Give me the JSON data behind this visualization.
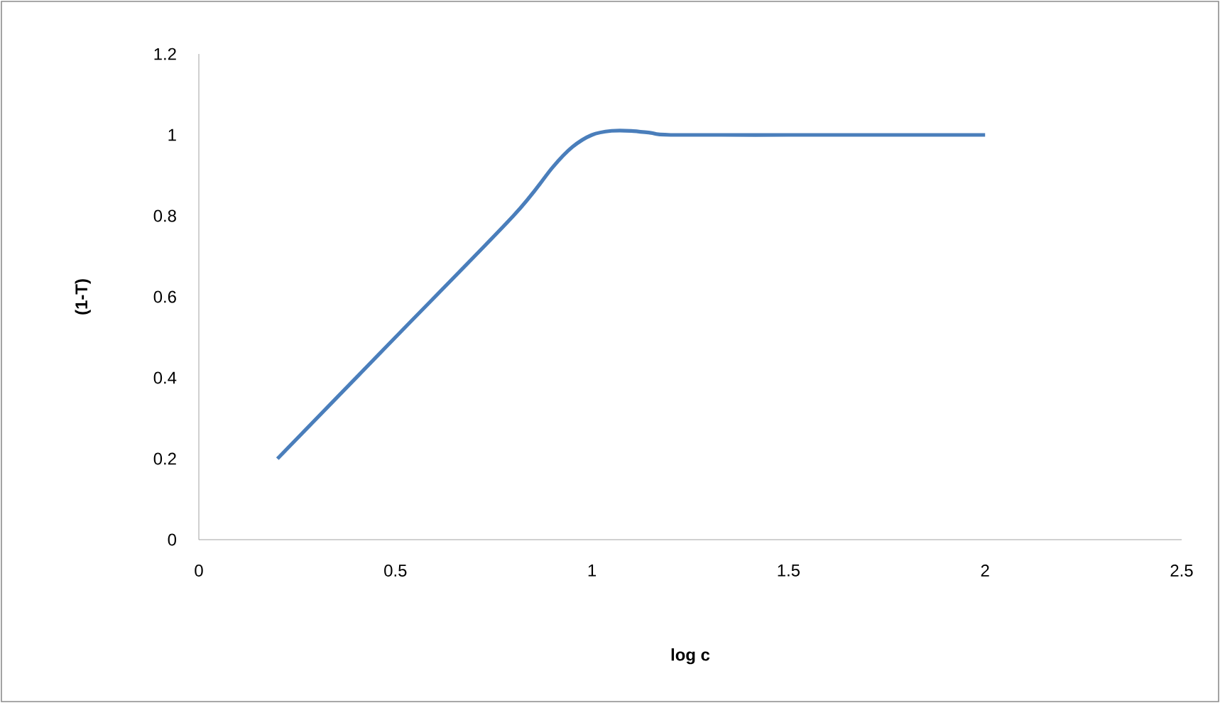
{
  "chart_data": {
    "type": "line",
    "xlabel": "log c",
    "ylabel": "(1-T)",
    "x": [
      0.2,
      0.5,
      0.8,
      0.9,
      0.95,
      1.0,
      1.05,
      1.1,
      1.15,
      1.2,
      1.5,
      2.0
    ],
    "series": [
      {
        "color": "#4a7ebb",
        "values": [
          0.2,
          0.5,
          0.8,
          0.92,
          0.97,
          1.0,
          1.01,
          1.01,
          1.005,
          1.0,
          1.0,
          1.0
        ]
      }
    ],
    "xlim": [
      0,
      2.5
    ],
    "xticks": [
      0,
      0.5,
      1,
      1.5,
      2,
      2.5
    ],
    "ylim": [
      0,
      1.2
    ],
    "yticks": [
      0,
      0.2,
      0.4,
      0.6,
      0.8,
      1,
      1.2
    ],
    "grid": false,
    "marker": "none",
    "line_style": "solid"
  }
}
